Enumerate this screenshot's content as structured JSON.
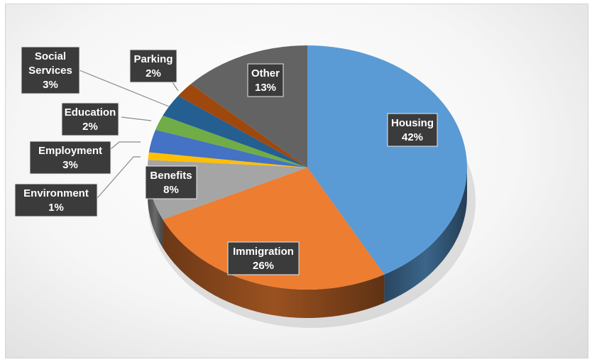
{
  "chart_data": {
    "type": "pie",
    "style": "3d",
    "slices": [
      {
        "label": "Housing",
        "value": 42,
        "display": "42%",
        "color": "#5b9bd5"
      },
      {
        "label": "Immigration",
        "value": 26,
        "display": "26%",
        "color": "#ed7d31"
      },
      {
        "label": "Benefits",
        "value": 8,
        "display": "8%",
        "color": "#a5a5a5"
      },
      {
        "label": "Environment",
        "value": 1,
        "display": "1%",
        "color": "#ffc000"
      },
      {
        "label": "Employment",
        "value": 3,
        "display": "3%",
        "color": "#4472c4"
      },
      {
        "label": "Education",
        "value": 2,
        "display": "2%",
        "color": "#70ad47"
      },
      {
        "label": "Social Services",
        "label_lines": [
          "Social",
          "Services"
        ],
        "value": 3,
        "display": "3%",
        "color": "#255e91"
      },
      {
        "label": "Parking",
        "value": 2,
        "display": "2%",
        "color": "#9e480e"
      },
      {
        "label": "Other",
        "value": 13,
        "display": "13%",
        "color": "#636363"
      }
    ],
    "legend": "none",
    "data_labels": "label-and-percent"
  }
}
